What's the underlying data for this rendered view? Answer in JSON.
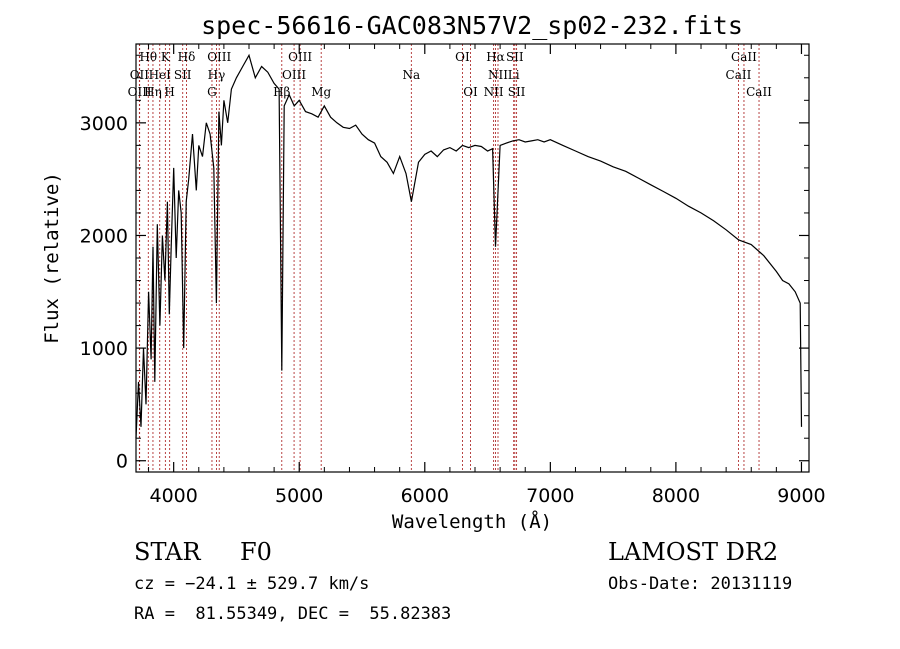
{
  "chart_data": {
    "type": "line",
    "title": "spec-56616-GAC083N57V2_sp02-232.fits",
    "xlabel": "Wavelength (Å)",
    "ylabel": "Flux (relative)",
    "xlim": [
      3700,
      9060
    ],
    "ylim": [
      -100,
      3700
    ],
    "x_ticks": [
      4000,
      5000,
      6000,
      7000,
      8000,
      9000
    ],
    "y_ticks": [
      0,
      1000,
      2000,
      3000
    ],
    "grid": false,
    "series": [
      {
        "color": "#000000",
        "x": [
          3700,
          3720,
          3740,
          3760,
          3780,
          3800,
          3820,
          3835,
          3850,
          3870,
          3890,
          3910,
          3930,
          3950,
          3965,
          3980,
          4000,
          4020,
          4040,
          4060,
          4080,
          4100,
          4120,
          4150,
          4180,
          4200,
          4230,
          4260,
          4290,
          4320,
          4340,
          4360,
          4380,
          4400,
          4430,
          4460,
          4500,
          4550,
          4600,
          4650,
          4700,
          4750,
          4800,
          4840,
          4861,
          4880,
          4920,
          4960,
          5000,
          5050,
          5100,
          5150,
          5200,
          5250,
          5300,
          5350,
          5400,
          5450,
          5500,
          5550,
          5600,
          5650,
          5700,
          5750,
          5800,
          5850,
          5893,
          5950,
          6000,
          6050,
          6100,
          6150,
          6200,
          6250,
          6300,
          6350,
          6400,
          6450,
          6500,
          6540,
          6563,
          6600,
          6650,
          6700,
          6750,
          6800,
          6850,
          6900,
          6950,
          7000,
          7100,
          7200,
          7300,
          7400,
          7500,
          7600,
          7700,
          7800,
          7900,
          8000,
          8100,
          8200,
          8300,
          8400,
          8500,
          8600,
          8700,
          8800,
          8850,
          8900,
          8950,
          8990,
          9000
        ],
        "y": [
          200,
          700,
          300,
          1000,
          500,
          1500,
          900,
          1900,
          700,
          2100,
          1200,
          2000,
          1600,
          2300,
          1300,
          1900,
          2600,
          1800,
          2400,
          2200,
          1000,
          2300,
          2500,
          2900,
          2400,
          2800,
          2700,
          3000,
          2900,
          2600,
          1400,
          3100,
          2800,
          3200,
          3000,
          3300,
          3400,
          3500,
          3600,
          3400,
          3500,
          3450,
          3350,
          3300,
          800,
          3150,
          3250,
          3150,
          3200,
          3100,
          3080,
          3050,
          3150,
          3050,
          3000,
          2960,
          2950,
          2980,
          2900,
          2850,
          2820,
          2700,
          2650,
          2550,
          2700,
          2550,
          2300,
          2650,
          2720,
          2750,
          2700,
          2760,
          2780,
          2750,
          2800,
          2780,
          2800,
          2790,
          2750,
          2770,
          1900,
          2800,
          2820,
          2840,
          2850,
          2830,
          2840,
          2850,
          2830,
          2850,
          2800,
          2750,
          2700,
          2660,
          2610,
          2570,
          2510,
          2450,
          2390,
          2330,
          2260,
          2200,
          2130,
          2050,
          1960,
          1920,
          1820,
          1680,
          1600,
          1570,
          1500,
          1400,
          300
        ]
      }
    ],
    "lines": [
      {
        "label": "Hθ",
        "wavelength": 3798,
        "row": 1
      },
      {
        "label": "OII",
        "wavelength": 3727,
        "row": 2
      },
      {
        "label": "OIII",
        "wavelength": 3729,
        "row": 3
      },
      {
        "label": "Hη",
        "wavelength": 3835,
        "row": 3
      },
      {
        "label": "HeI",
        "wavelength": 3889,
        "row": 2
      },
      {
        "label": "K",
        "wavelength": 3934,
        "row": 1
      },
      {
        "label": "H",
        "wavelength": 3968,
        "row": 3
      },
      {
        "label": "SII",
        "wavelength": 4072,
        "row": 2
      },
      {
        "label": "Hδ",
        "wavelength": 4102,
        "row": 1
      },
      {
        "label": "OIII",
        "wavelength": 4363,
        "row": 1
      },
      {
        "label": "Hγ",
        "wavelength": 4341,
        "row": 2
      },
      {
        "label": "G",
        "wavelength": 4305,
        "row": 3
      },
      {
        "label": "Hβ",
        "wavelength": 4861,
        "row": 3
      },
      {
        "label": "OIII",
        "wavelength": 4959,
        "row": 2
      },
      {
        "label": "OIII",
        "wavelength": 5007,
        "row": 1
      },
      {
        "label": "Mg",
        "wavelength": 5175,
        "row": 3
      },
      {
        "label": "Na",
        "wavelength": 5893,
        "row": 2
      },
      {
        "label": "OI",
        "wavelength": 6300,
        "row": 1
      },
      {
        "label": "OI",
        "wavelength": 6364,
        "row": 3
      },
      {
        "label": "NII",
        "wavelength": 6548,
        "row": 3
      },
      {
        "label": "NII",
        "wavelength": 6583,
        "row": 2
      },
      {
        "label": "Hα",
        "wavelength": 6563,
        "row": 1
      },
      {
        "label": "SII",
        "wavelength": 6717,
        "row": 1
      },
      {
        "label": "SII",
        "wavelength": 6731,
        "row": 3
      },
      {
        "label": "Li",
        "wavelength": 6708,
        "row": 2
      },
      {
        "label": "CaII",
        "wavelength": 8498,
        "row": 2
      },
      {
        "label": "CaII",
        "wavelength": 8542,
        "row": 1
      },
      {
        "label": "CaII",
        "wavelength": 8662,
        "row": 3
      }
    ]
  },
  "info": {
    "object_type": "STAR",
    "subclass": "F0",
    "survey": "LAMOST DR2",
    "redshift": "cz = −24.1 ± 529.7 km/s",
    "obs_date": "Obs-Date: 20131119",
    "coords": "RA =  81.55349, DEC =  55.82383"
  }
}
